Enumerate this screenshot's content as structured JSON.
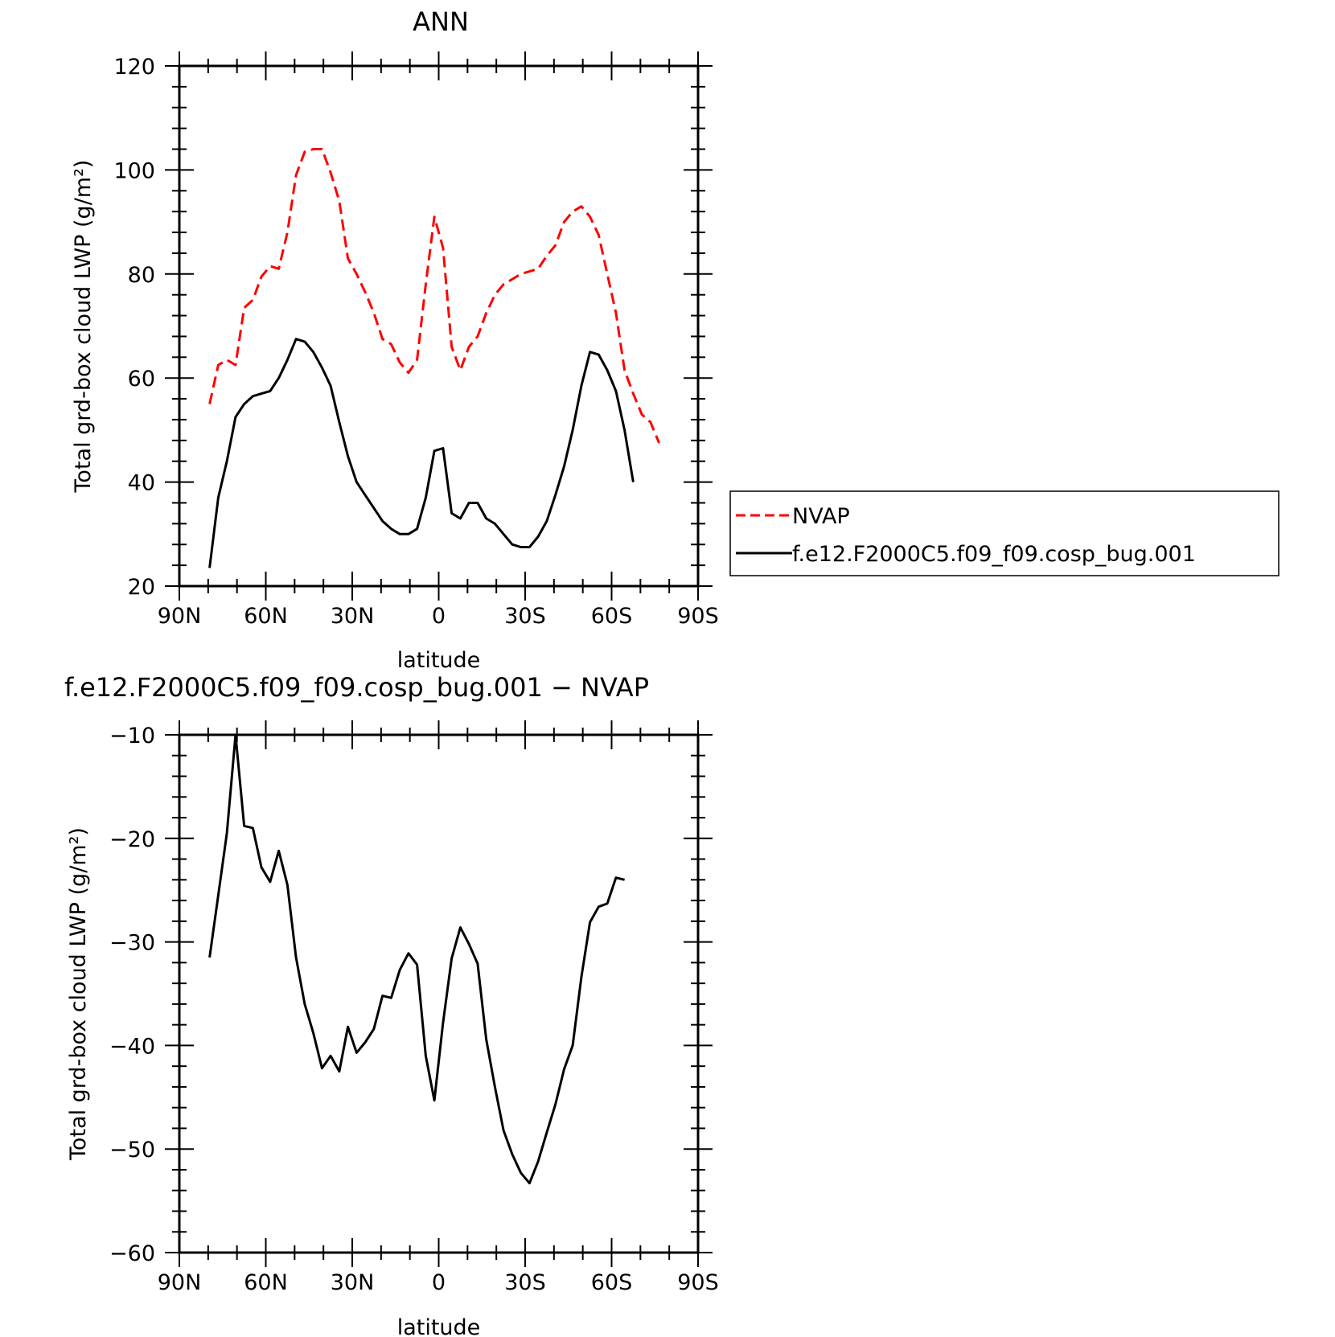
{
  "chart_data": [
    {
      "type": "line",
      "title": "ANN",
      "xlabel": "latitude",
      "ylabel": "Total grd-box cloud LWP (g/m²)",
      "xlim": [
        90,
        -90
      ],
      "ylim": [
        20,
        120
      ],
      "x_ticks": [
        {
          "value": 90,
          "label": "90N"
        },
        {
          "value": 60,
          "label": "60N"
        },
        {
          "value": 30,
          "label": "30N"
        },
        {
          "value": 0,
          "label": "0"
        },
        {
          "value": -30,
          "label": "30S"
        },
        {
          "value": -60,
          "label": "60S"
        },
        {
          "value": -90,
          "label": "90S"
        }
      ],
      "y_ticks": [
        {
          "value": 20,
          "label": "20"
        },
        {
          "value": 40,
          "label": "40"
        },
        {
          "value": 60,
          "label": "60"
        },
        {
          "value": 80,
          "label": "80"
        },
        {
          "value": 100,
          "label": "100"
        },
        {
          "value": 120,
          "label": "120"
        }
      ],
      "legend_position": "right",
      "series": [
        {
          "name": "NVAP",
          "color": "#ff0000",
          "style": "dashed",
          "x": [
            79.5,
            76.5,
            73.5,
            70.5,
            67.5,
            64.5,
            61.5,
            58.5,
            55.5,
            52.5,
            49.5,
            46.5,
            43.5,
            40.5,
            37.5,
            34.5,
            31.5,
            28.5,
            25.5,
            22.5,
            19.5,
            16.5,
            13.5,
            10.5,
            7.5,
            4.5,
            1.5,
            -1.5,
            -4.5,
            -7.5,
            -10.5,
            -13.5,
            -16.5,
            -19.5,
            -22.5,
            -25.5,
            -28.5,
            -31.5,
            -34.5,
            -37.5,
            -40.5,
            -43.5,
            -46.5,
            -49.5,
            -52.5,
            -55.5,
            -58.5,
            -61.5,
            -64.5,
            -67.5,
            -70.5,
            -73.5,
            -76.5
          ],
          "y": [
            55,
            62.5,
            63.5,
            62.5,
            73.5,
            75,
            79.5,
            81.5,
            81,
            88,
            99,
            103.5,
            104,
            104,
            99.5,
            94,
            83,
            80,
            76.5,
            72.5,
            67.5,
            66.5,
            63,
            61,
            63.5,
            78,
            91,
            85,
            66,
            61.5,
            66,
            68,
            72.5,
            76,
            78,
            79,
            80,
            80.5,
            81,
            83.5,
            85.5,
            90,
            92,
            93,
            91,
            87.5,
            80,
            72.5,
            61.5,
            57,
            53,
            51.5,
            47.5
          ]
        },
        {
          "name": "f.e12.F2000C5.f09_f09.cosp_bug.001",
          "color": "#000000",
          "style": "solid",
          "x": [
            79.5,
            76.5,
            73.5,
            70.5,
            67.5,
            64.5,
            61.5,
            58.5,
            55.5,
            52.5,
            49.5,
            46.5,
            43.5,
            40.5,
            37.5,
            34.5,
            31.5,
            28.5,
            25.5,
            22.5,
            19.5,
            16.5,
            13.5,
            10.5,
            7.5,
            4.5,
            1.5,
            -1.5,
            -4.5,
            -7.5,
            -10.5,
            -13.5,
            -16.5,
            -19.5,
            -22.5,
            -25.5,
            -28.5,
            -31.5,
            -34.5,
            -37.5,
            -40.5,
            -43.5,
            -46.5,
            -49.5,
            -52.5,
            -55.5,
            -58.5,
            -61.5,
            -64.5,
            -67.5
          ],
          "y": [
            23.5,
            37,
            44,
            52.5,
            55,
            56.5,
            57,
            57.5,
            60,
            63.5,
            67.5,
            67,
            65,
            62,
            58.5,
            51.5,
            45,
            40,
            37.5,
            35,
            32.5,
            31,
            30,
            30,
            31,
            37,
            46,
            46.5,
            34,
            33,
            36,
            36,
            33,
            32,
            30,
            28,
            27.5,
            27.5,
            29.5,
            32.5,
            37.5,
            43,
            50,
            58.5,
            65,
            64.5,
            61.5,
            57.5,
            50,
            40
          ]
        }
      ],
      "legend": [
        {
          "label": "NVAP"
        },
        {
          "label": "f.e12.F2000C5.f09_f09.cosp_bug.001"
        }
      ]
    },
    {
      "type": "line",
      "title": "f.e12.F2000C5.f09_f09.cosp_bug.001 − NVAP",
      "xlabel": "latitude",
      "ylabel": "Total grd-box cloud LWP (g/m²)",
      "xlim": [
        90,
        -90
      ],
      "ylim": [
        -60,
        -10
      ],
      "x_ticks": [
        {
          "value": 90,
          "label": "90N"
        },
        {
          "value": 60,
          "label": "60N"
        },
        {
          "value": 30,
          "label": "30N"
        },
        {
          "value": 0,
          "label": "0"
        },
        {
          "value": -30,
          "label": "30S"
        },
        {
          "value": -60,
          "label": "60S"
        },
        {
          "value": -90,
          "label": "90S"
        }
      ],
      "y_ticks": [
        {
          "value": -60,
          "label": "−60"
        },
        {
          "value": -50,
          "label": "−50"
        },
        {
          "value": -40,
          "label": "−40"
        },
        {
          "value": -30,
          "label": "−30"
        },
        {
          "value": -20,
          "label": "−20"
        },
        {
          "value": -10,
          "label": "−10"
        }
      ],
      "series": [
        {
          "color": "#000000",
          "style": "solid",
          "x": [
            79.5,
            76.5,
            73.5,
            70.5,
            67.5,
            64.5,
            61.5,
            58.5,
            55.5,
            52.5,
            49.5,
            46.5,
            43.5,
            40.5,
            37.5,
            34.5,
            31.5,
            28.5,
            25.5,
            22.5,
            19.5,
            16.5,
            13.5,
            10.5,
            7.5,
            4.5,
            1.5,
            -1.5,
            -4.5,
            -7.5,
            -10.5,
            -13.5,
            -16.5,
            -19.5,
            -22.5,
            -25.5,
            -28.5,
            -31.5,
            -34.5,
            -37.5,
            -40.5,
            -43.5,
            -46.5,
            -49.5,
            -52.5,
            -55.5,
            -58.5,
            -61.5,
            -64.5
          ],
          "y": [
            -31.5,
            -25.5,
            -19.5,
            -10,
            -18.8,
            -19,
            -22.8,
            -24.2,
            -21.2,
            -24.5,
            -31.5,
            -36,
            -38.8,
            -42.2,
            -41,
            -42.5,
            -38.2,
            -40.7,
            -39.7,
            -38.4,
            -35.2,
            -35.4,
            -32.7,
            -31.1,
            -32.2,
            -41,
            -45.3,
            -37.8,
            -31.6,
            -28.6,
            -30.2,
            -32.1,
            -39.4,
            -44,
            -48.2,
            -50.5,
            -52.3,
            -53.3,
            -51.2,
            -48.4,
            -45.7,
            -42.3,
            -40,
            -33.4,
            -28.1,
            -26.6,
            -26.3,
            -23.8,
            -24
          ]
        }
      ]
    }
  ]
}
